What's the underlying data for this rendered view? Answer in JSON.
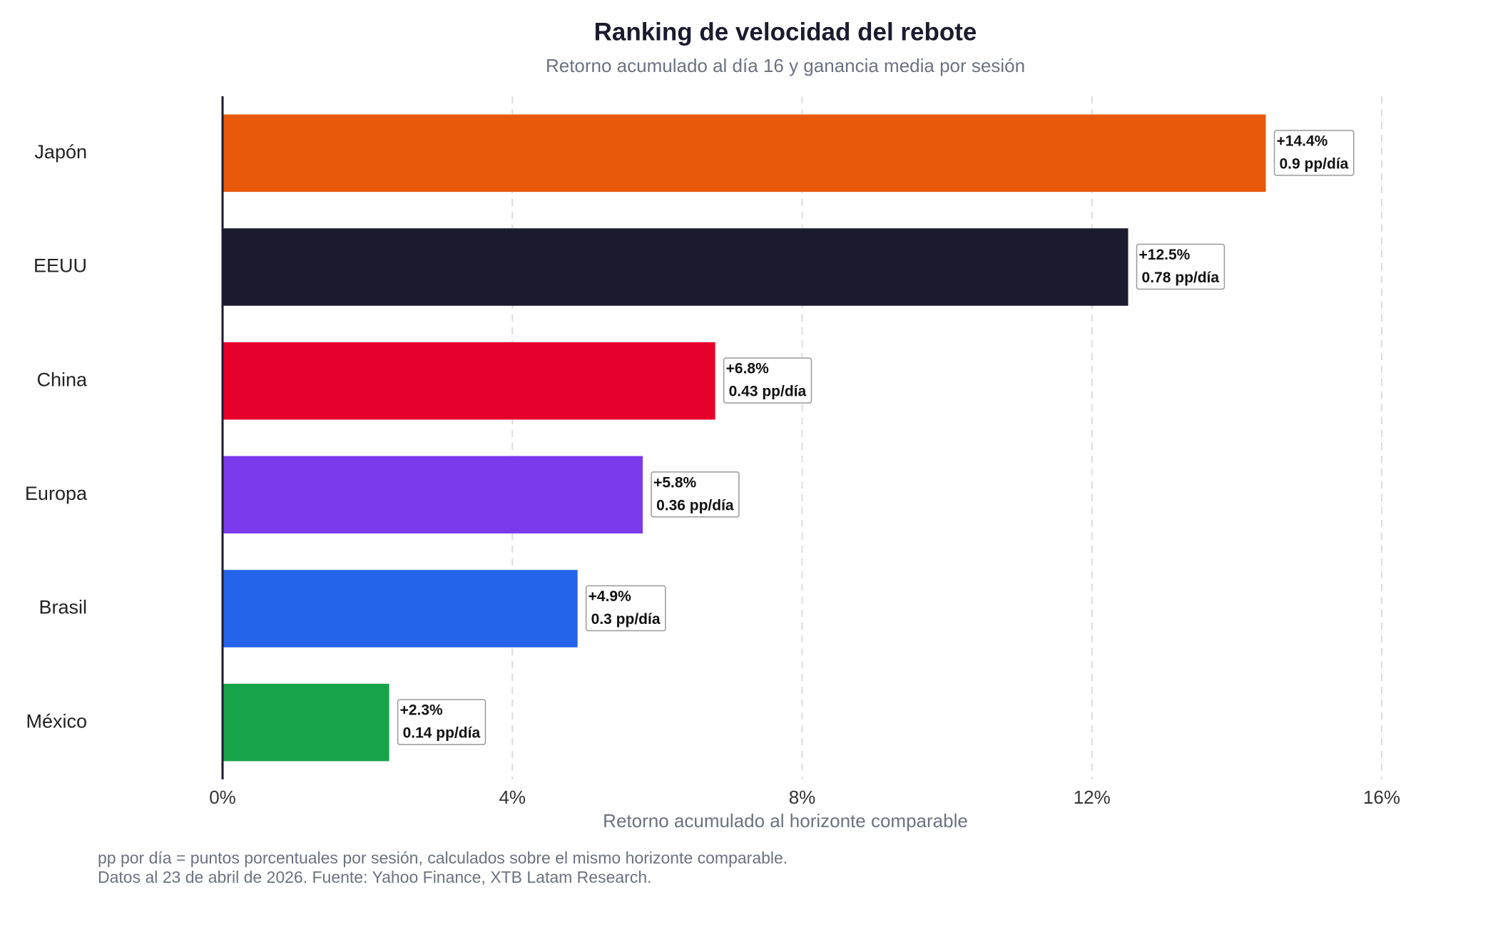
{
  "chart_data": {
    "type": "barh",
    "title": "Ranking de velocidad del rebote",
    "subtitle": "Retorno acumulado al día 16 y ganancia media por sesión",
    "x_label": "Retorno acumulado al horizonte comparable",
    "categories": [
      "Japón",
      "EEUU",
      "China",
      "Europa",
      "Brasil",
      "México"
    ],
    "values": [
      14.4,
      12.5,
      6.8,
      5.8,
      4.9,
      2.3
    ],
    "value_labels": [
      "+14.4%",
      "+12.5%",
      "+6.8%",
      "+5.8%",
      "+4.9%",
      "+2.3%"
    ],
    "rate_values": [
      0.9,
      0.78,
      0.43,
      0.36,
      0.3,
      0.14
    ],
    "rate_labels": [
      "0.9 pp/día",
      "0.78 pp/día",
      "0.43 pp/día",
      "0.36 pp/día",
      "0.3 pp/día",
      "0.14 pp/día"
    ],
    "colors": [
      "#e8590c",
      "#1b1b2f",
      "#e8002d",
      "#7c3aed",
      "#2563eb",
      "#16a34a"
    ],
    "xlim": [
      0,
      16
    ],
    "xticks": [
      {
        "value": 0,
        "label": "0%"
      },
      {
        "value": 4,
        "label": "4%"
      },
      {
        "value": 8,
        "label": "8%"
      },
      {
        "value": 12,
        "label": "12%"
      },
      {
        "value": 16,
        "label": "16%"
      }
    ],
    "grid": true,
    "notes": [
      "pp por día = puntos porcentuales por sesión, calculados sobre el mismo horizonte comparable.",
      "Datos al 23 de abril de 2026. Fuente: Yahoo Finance, XTB Latam Research."
    ]
  }
}
